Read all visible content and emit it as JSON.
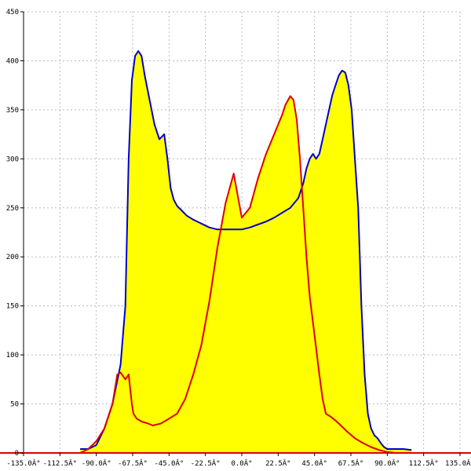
{
  "chart_data": {
    "type": "area",
    "title": "",
    "xlabel": "",
    "ylabel": "",
    "xlim": [
      -135,
      135
    ],
    "ylim": [
      0,
      450
    ],
    "grid": true,
    "x_ticks": [
      -135,
      -112.5,
      -90,
      -67.5,
      -45,
      -22.5,
      0,
      22.5,
      45,
      67.5,
      90,
      112.5,
      135
    ],
    "x_tick_labels": [
      "-135.0Â°",
      "-112.5Â°",
      "-90.0Â°",
      "-67.5Â°",
      "-45.0Â°",
      "-22.5Â°",
      "0.0Â°",
      "22.5Â°",
      "45.0Â°",
      "67.5Â°",
      "90.0Â°",
      "112.5Â°",
      "135.0Â°"
    ],
    "y_ticks": [
      0,
      50,
      100,
      150,
      200,
      250,
      300,
      350,
      400,
      450
    ],
    "y_tick_labels": [
      "0",
      "50",
      "100",
      "150",
      "200",
      "250",
      "300",
      "350",
      "400",
      "450"
    ],
    "colors": {
      "fill": "#ffff00",
      "blue_line": "#0000cc",
      "red_line": "#dd0000",
      "grid": "#bbbbbb",
      "axis": "#000000"
    },
    "series": [
      {
        "x": [
          -100,
          -95,
          -90,
          -85,
          -80,
          -75,
          -72,
          -70,
          -68,
          -66,
          -64,
          -62,
          -60,
          -57,
          -54,
          -51,
          -48,
          -46,
          -44,
          -42,
          -40,
          -37,
          -34,
          -30,
          -25,
          -20,
          -15,
          -10,
          -5,
          0,
          5,
          10,
          15,
          20,
          25,
          30,
          35,
          38,
          40,
          42,
          44,
          46,
          48,
          50,
          52,
          54,
          56,
          58,
          60,
          62,
          64,
          66,
          68,
          70,
          72,
          74,
          76,
          78,
          80,
          82,
          84,
          86,
          88,
          90,
          95,
          100,
          105
        ],
        "y": [
          4,
          4,
          8,
          25,
          50,
          90,
          150,
          300,
          380,
          405,
          410,
          405,
          385,
          360,
          335,
          320,
          325,
          300,
          270,
          258,
          252,
          247,
          242,
          238,
          234,
          230,
          228,
          228,
          228,
          228,
          230,
          233,
          236,
          240,
          245,
          250,
          260,
          275,
          290,
          300,
          305,
          300,
          305,
          320,
          335,
          350,
          365,
          375,
          385,
          390,
          388,
          375,
          350,
          300,
          250,
          150,
          80,
          40,
          25,
          18,
          15,
          10,
          6,
          4,
          4,
          4,
          3
        ]
      },
      {
        "x": [
          -100,
          -95,
          -90,
          -85,
          -80,
          -77,
          -75,
          -72,
          -70,
          -69,
          -68,
          -67,
          -65,
          -62,
          -58,
          -55,
          -50,
          -45,
          -40,
          -35,
          -30,
          -25,
          -20,
          -15,
          -10,
          -5,
          0,
          5,
          10,
          15,
          20,
          25,
          27,
          30,
          32,
          34,
          36,
          38,
          40,
          42,
          45,
          48,
          50,
          52,
          55,
          58,
          60,
          65,
          70,
          75,
          80,
          85,
          90,
          95,
          100
        ],
        "y": [
          0,
          4,
          12,
          25,
          50,
          80,
          82,
          75,
          80,
          65,
          50,
          40,
          35,
          32,
          30,
          28,
          30,
          35,
          40,
          55,
          80,
          110,
          155,
          210,
          255,
          285,
          240,
          250,
          280,
          305,
          325,
          345,
          355,
          364,
          360,
          340,
          300,
          250,
          200,
          160,
          120,
          80,
          55,
          40,
          37,
          33,
          30,
          22,
          15,
          10,
          6,
          3,
          1,
          0,
          0
        ]
      }
    ]
  }
}
